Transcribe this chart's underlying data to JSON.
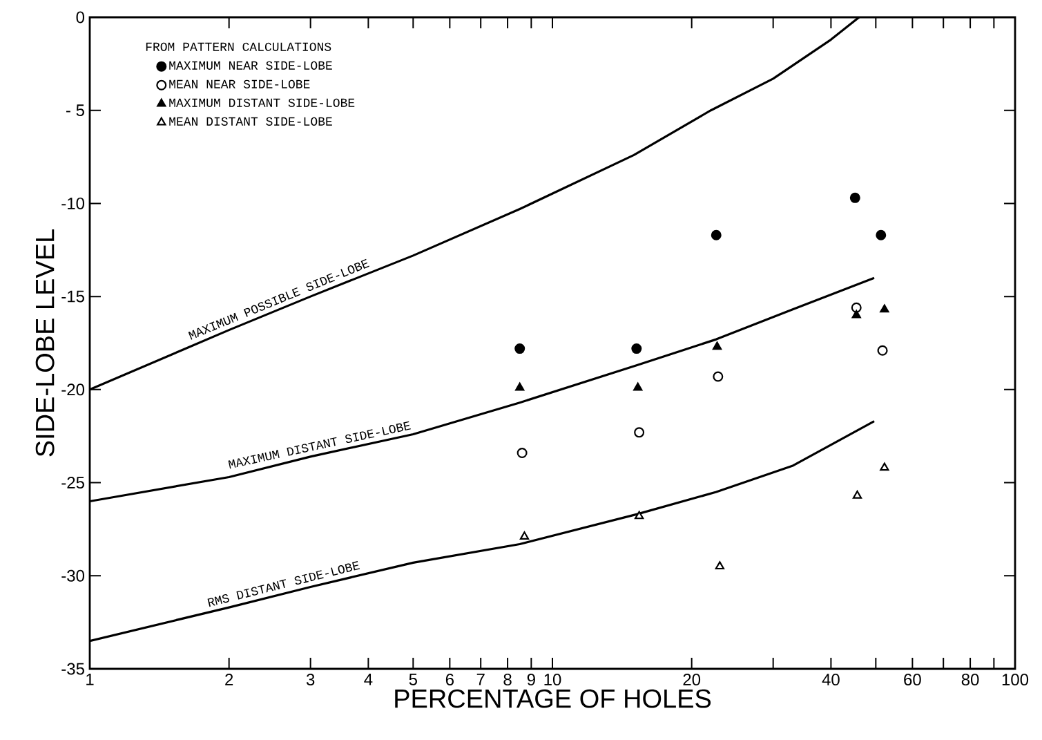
{
  "chart_data": {
    "type": "scatter",
    "xlabel": "PERCENTAGE OF HOLES",
    "ylabel": "SIDE-LOBE LEVEL",
    "legend_title": "FROM PATTERN CALCULATIONS",
    "log": "x",
    "legend": "top left",
    "grid": false,
    "xlim": [
      1,
      100
    ],
    "ylim": [
      -35,
      0
    ],
    "xticks": [
      1,
      2,
      3,
      4,
      5,
      6,
      7,
      8,
      9,
      10,
      20,
      {
        "value": 30,
        "label": null
      },
      40,
      {
        "value": 50,
        "label": null
      },
      60,
      {
        "value": 70,
        "label": null
      },
      80,
      {
        "value": 90,
        "label": null
      },
      100
    ],
    "yticks": [
      -35,
      -30,
      -25,
      -20,
      -15,
      -10,
      {
        "value": -5,
        "label": "- 5"
      },
      0
    ],
    "series": [
      {
        "name": "MAXIMUM NEAR SIDE-LOBE",
        "color": "#000000",
        "marker": "circle",
        "x": [
          8.5,
          15.2,
          22.6,
          45.1,
          51.3
        ],
        "values": [
          -17.8,
          -17.8,
          -11.7,
          -9.7,
          -11.7
        ]
      },
      {
        "name": "MEAN NEAR  SIDE-LOBE",
        "color": "#000000",
        "marker": "circle",
        "x": [
          8.6,
          15.4,
          22.8,
          45.4,
          51.7
        ],
        "values": [
          -23.4,
          -22.3,
          -19.3,
          -15.6,
          -17.9
        ]
      },
      {
        "name": "MAXIMUM DISTANT SIDE-LOBE",
        "color": "#000000",
        "marker": "triangle",
        "x": [
          8.5,
          15.3,
          22.7,
          45.4,
          52.2
        ],
        "values": [
          -19.9,
          -19.9,
          -17.7,
          -16.0,
          -15.7
        ]
      },
      {
        "name": "MEAN DISTANT  SIDE-LOBE",
        "color": "#000000",
        "marker": "triangle",
        "x": [
          8.7,
          15.4,
          23.0,
          45.6,
          52.2
        ],
        "values": [
          -27.9,
          -26.8,
          -29.5,
          -25.7,
          -24.2
        ]
      },
      {
        "name": "MAXIMUM POSSIBLE SIDE-LOBE",
        "type": "line",
        "color": "#000000",
        "x": [
          1,
          2,
          3,
          5,
          8.5,
          15,
          22,
          30,
          40,
          46
        ],
        "values": [
          -20.0,
          -16.8,
          -15.0,
          -12.8,
          -10.3,
          -7.4,
          -5.0,
          -3.3,
          -1.2,
          0
        ]
      },
      {
        "name": "MAXIMUM DISTANT SIDE-LOBE",
        "type": "line",
        "color": "#000000",
        "x": [
          1,
          2,
          3,
          5,
          8.5,
          15.2,
          22.6,
          33,
          49.6
        ],
        "values": [
          -26.0,
          -24.7,
          -23.6,
          -22.4,
          -20.7,
          -18.7,
          -17.3,
          -15.7,
          -14.0
        ]
      },
      {
        "name": "RMS DISTANT SIDE-LOBE",
        "type": "line",
        "color": "#000000",
        "x": [
          1,
          2,
          3,
          5,
          8.5,
          15.2,
          22.6,
          33,
          49.6
        ],
        "values": [
          -33.5,
          -31.7,
          -30.6,
          -29.3,
          -28.3,
          -26.7,
          -25.5,
          -24.1,
          -21.7
        ]
      }
    ]
  }
}
